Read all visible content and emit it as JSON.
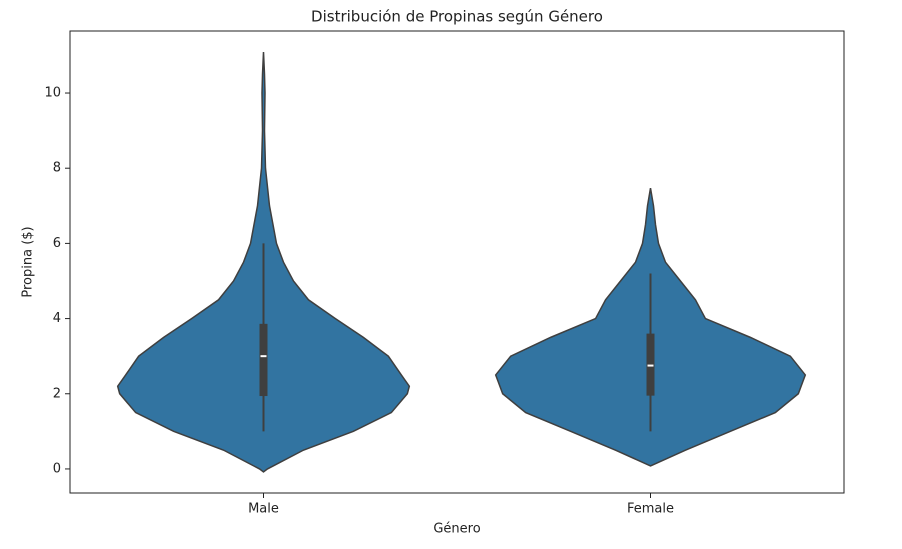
{
  "chart_data": {
    "type": "violin",
    "title": "Distribución de Propinas según Género",
    "x_label": "Género",
    "y_label": "Propina ($)",
    "categories": [
      "Male",
      "Female"
    ],
    "color": "#3274a1",
    "edge_color": "#3f3f3f",
    "ylim": [
      -0.64,
      11.65
    ],
    "yticks": [
      0,
      2,
      4,
      6,
      8,
      10
    ],
    "grid": false,
    "violins": [
      {
        "y": [
          -0.08,
          0,
          0.5,
          1,
          1.5,
          2,
          2.2,
          2.5,
          3,
          3.5,
          4,
          4.5,
          5,
          5.5,
          6,
          7,
          8,
          9,
          10,
          10.5,
          11.09
        ],
        "density": [
          0,
          4,
          40,
          90,
          128,
          144,
          146,
          138,
          125,
          100,
          72,
          45,
          30,
          20,
          13,
          6,
          2,
          1,
          1.5,
          1,
          0
        ],
        "whisker_low": 1.0,
        "q1": 1.94,
        "median": 3.0,
        "q3": 3.86,
        "whisker_high": 6.0
      },
      {
        "y": [
          0.08,
          0.5,
          1,
          1.5,
          2,
          2.5,
          3,
          3.5,
          4,
          4.5,
          5,
          5.5,
          6,
          6.5,
          7,
          7.47
        ],
        "density": [
          0,
          35,
          80,
          125,
          148,
          155,
          140,
          100,
          55,
          45,
          30,
          15,
          8,
          5,
          3,
          0
        ],
        "whisker_low": 1.0,
        "q1": 1.95,
        "median": 2.75,
        "q3": 3.6,
        "whisker_high": 5.2
      }
    ]
  }
}
